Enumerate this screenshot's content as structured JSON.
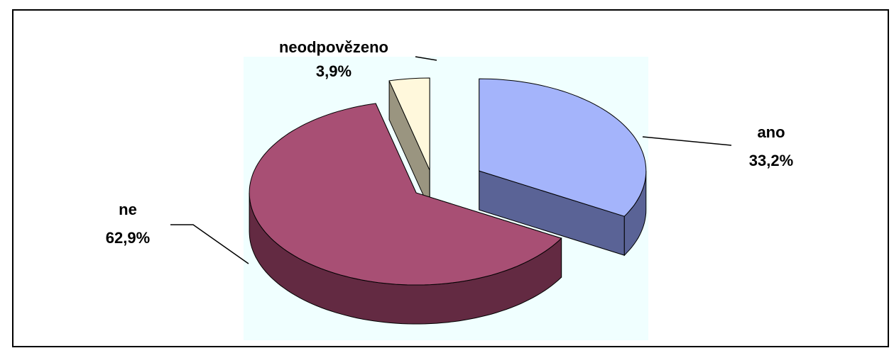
{
  "chart_data": {
    "type": "pie3d",
    "categories": [
      "ano",
      "ne",
      "neodpovězeno"
    ],
    "values": [
      33.2,
      62.9,
      3.9
    ],
    "value_labels": [
      "33,2%",
      "62,9%",
      "3,9%"
    ],
    "colors": [
      "#a4b4fb",
      "#a84f74",
      "#fff8dc"
    ],
    "side_colors": [
      "#5a6396",
      "#632a42",
      "#9a9580"
    ]
  }
}
